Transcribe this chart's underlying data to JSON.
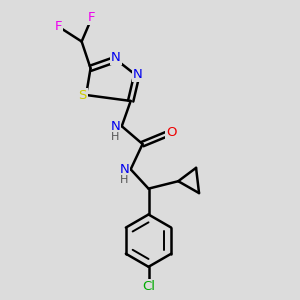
{
  "bg_color": "#dcdcdc",
  "atom_colors": {
    "C": "#000000",
    "H": "#000000",
    "N": "#0000ee",
    "O": "#ee0000",
    "S": "#cccc00",
    "F": "#ee00ee",
    "Cl": "#00aa00"
  },
  "bond_color": "#000000",
  "bond_width": 1.8,
  "fig_bg": "#dcdcdc"
}
